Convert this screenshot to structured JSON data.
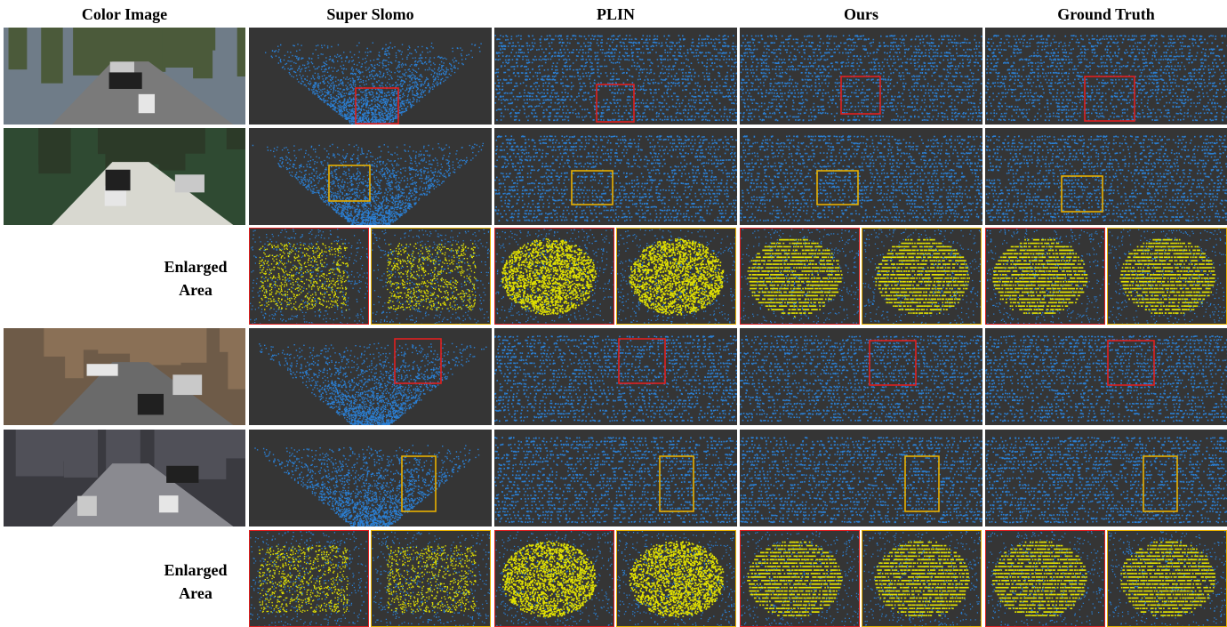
{
  "figure": {
    "column_headers": [
      "Color Image",
      "Super Slomo",
      "PLIN",
      "Ours",
      "Ground Truth"
    ],
    "enlarged_label_lines": [
      "Enlarged",
      "Area"
    ],
    "colors": {
      "background": "#353535",
      "point_blue": "#2a7fd4",
      "highlight_yellow": "#e0e000",
      "box_red": "#e02020",
      "box_orange": "#e8b000"
    }
  }
}
